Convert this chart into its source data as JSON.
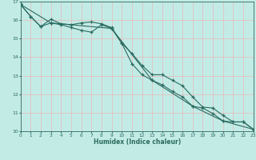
{
  "xlabel": "Humidex (Indice chaleur)",
  "bg_color": "#c3ebe6",
  "line_color": "#2a6b60",
  "grid_color": "#e8b8b8",
  "xmin": 0,
  "xmax": 23,
  "ymin": 10,
  "ymax": 17,
  "line1_x": [
    0,
    1,
    2,
    3,
    4,
    5,
    6,
    7,
    8,
    9,
    10,
    11,
    12,
    13,
    14,
    15,
    16,
    17,
    18,
    19,
    20,
    21,
    22,
    23
  ],
  "line1_y": [
    16.85,
    16.2,
    15.65,
    16.05,
    15.8,
    15.75,
    15.85,
    15.9,
    15.8,
    15.6,
    14.75,
    14.2,
    13.55,
    13.05,
    13.05,
    12.75,
    12.45,
    11.85,
    11.3,
    11.25,
    10.85,
    10.5,
    10.5,
    10.1
  ],
  "line2_x": [
    0,
    1,
    2,
    3,
    4,
    5,
    6,
    7,
    8,
    9,
    10,
    11,
    12,
    13,
    14,
    15,
    16,
    17,
    18,
    19,
    20,
    21,
    22,
    23
  ],
  "line2_y": [
    16.85,
    16.2,
    15.65,
    15.85,
    15.75,
    15.6,
    15.45,
    15.35,
    15.75,
    15.55,
    14.75,
    13.65,
    13.05,
    12.75,
    12.5,
    12.15,
    11.85,
    11.35,
    11.25,
    10.95,
    10.55,
    10.5,
    10.5,
    10.1
  ],
  "line3_x": [
    0,
    3,
    9,
    13,
    17,
    20,
    23
  ],
  "line3_y": [
    16.85,
    15.85,
    15.55,
    12.75,
    11.35,
    10.55,
    10.1
  ]
}
